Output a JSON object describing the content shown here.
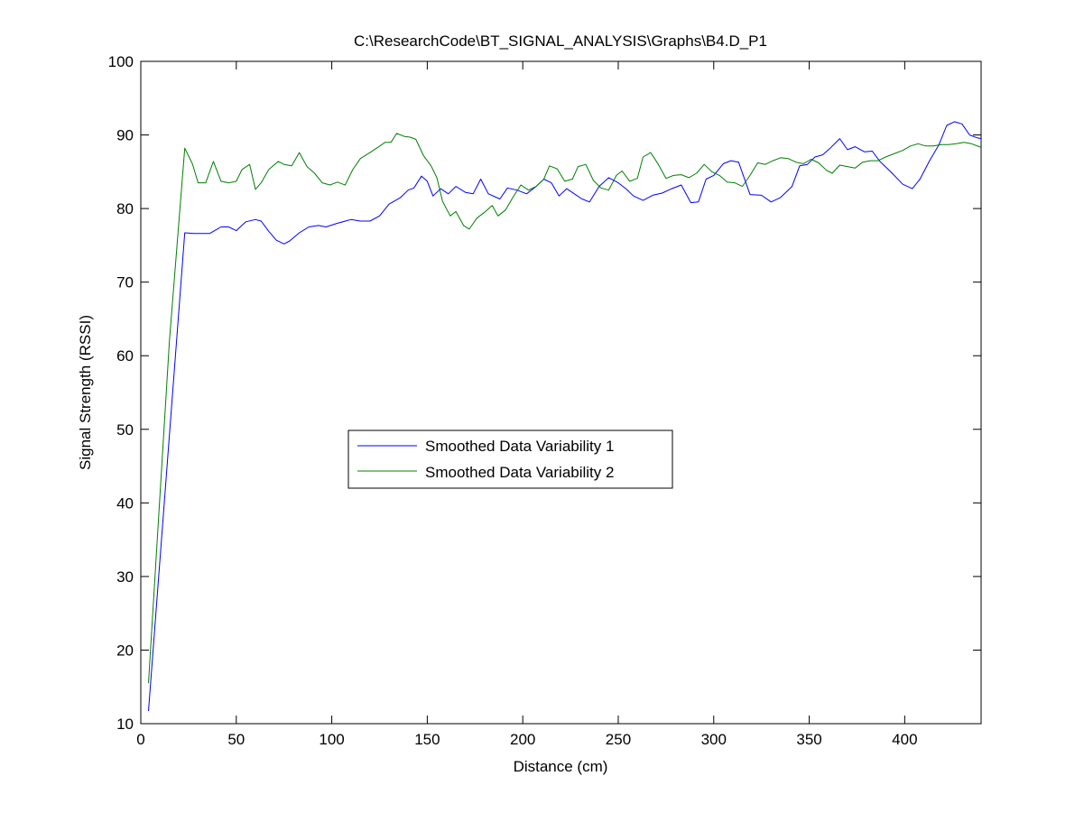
{
  "chart_data": {
    "type": "line",
    "title": "C:\\ResearchCode\\BT_SIGNAL_ANALYSIS\\Graphs\\B4.D_P1",
    "xlabel": "Distance (cm)",
    "ylabel": "Signal Strength (RSSI)",
    "xlim": [
      0,
      440
    ],
    "ylim": [
      10,
      100
    ],
    "xticks": [
      0,
      50,
      100,
      150,
      200,
      250,
      300,
      350,
      400
    ],
    "yticks": [
      10,
      20,
      30,
      40,
      50,
      60,
      70,
      80,
      90,
      100
    ],
    "xtick_labels": [
      "0",
      "50",
      "100",
      "150",
      "200",
      "250",
      "300",
      "350",
      "400"
    ],
    "ytick_labels": [
      "10",
      "20",
      "30",
      "40",
      "50",
      "60",
      "70",
      "80",
      "90",
      "100"
    ],
    "grid": false,
    "legend_position": "center",
    "series": [
      {
        "name": "Smoothed Data Variability 1",
        "color": "#0000ff",
        "points": [
          [
            4,
            11.7
          ],
          [
            23,
            76.7
          ],
          [
            28,
            76.6
          ],
          [
            36,
            76.6
          ],
          [
            42,
            77.5
          ],
          [
            46,
            77.5
          ],
          [
            50,
            77.0
          ],
          [
            55,
            78.2
          ],
          [
            60,
            78.5
          ],
          [
            63,
            78.3
          ],
          [
            67,
            76.9
          ],
          [
            71,
            75.7
          ],
          [
            75,
            75.2
          ],
          [
            78,
            75.6
          ],
          [
            83,
            76.7
          ],
          [
            88,
            77.5
          ],
          [
            93,
            77.7
          ],
          [
            97,
            77.5
          ],
          [
            103,
            78.0
          ],
          [
            110,
            78.5
          ],
          [
            115,
            78.3
          ],
          [
            120,
            78.3
          ],
          [
            125,
            79.0
          ],
          [
            130,
            80.6
          ],
          [
            136,
            81.5
          ],
          [
            140,
            82.5
          ],
          [
            143,
            82.8
          ],
          [
            147,
            84.4
          ],
          [
            150,
            83.7
          ],
          [
            153,
            81.7
          ],
          [
            157,
            82.7
          ],
          [
            161,
            82.0
          ],
          [
            165,
            83.0
          ],
          [
            170,
            82.2
          ],
          [
            174,
            82.0
          ],
          [
            178,
            84.0
          ],
          [
            182,
            82.0
          ],
          [
            188,
            81.3
          ],
          [
            192,
            82.8
          ],
          [
            197,
            82.5
          ],
          [
            202,
            82.0
          ],
          [
            207,
            83.0
          ],
          [
            211,
            84.0
          ],
          [
            215,
            83.5
          ],
          [
            219,
            81.7
          ],
          [
            223,
            82.7
          ],
          [
            227,
            82.0
          ],
          [
            231,
            81.3
          ],
          [
            235,
            80.9
          ],
          [
            240,
            83.0
          ],
          [
            245,
            84.2
          ],
          [
            250,
            83.5
          ],
          [
            254,
            82.7
          ],
          [
            258,
            81.7
          ],
          [
            263,
            81.1
          ],
          [
            268,
            81.8
          ],
          [
            273,
            82.1
          ],
          [
            278,
            82.7
          ],
          [
            283,
            83.2
          ],
          [
            288,
            80.8
          ],
          [
            292,
            80.9
          ],
          [
            296,
            84.0
          ],
          [
            300,
            84.5
          ],
          [
            305,
            86.1
          ],
          [
            309,
            86.5
          ],
          [
            313,
            86.3
          ],
          [
            319,
            81.9
          ],
          [
            325,
            81.8
          ],
          [
            330,
            80.9
          ],
          [
            335,
            81.5
          ],
          [
            341,
            83.0
          ],
          [
            345,
            85.8
          ],
          [
            349,
            86.0
          ],
          [
            353,
            87.0
          ],
          [
            357,
            87.3
          ],
          [
            361,
            88.2
          ],
          [
            366,
            89.5
          ],
          [
            370,
            88.0
          ],
          [
            374,
            88.4
          ],
          [
            379,
            87.7
          ],
          [
            383,
            87.8
          ],
          [
            387,
            86.4
          ],
          [
            393,
            84.9
          ],
          [
            399,
            83.3
          ],
          [
            404,
            82.7
          ],
          [
            408,
            84.0
          ],
          [
            413,
            86.5
          ],
          [
            418,
            88.7
          ],
          [
            422,
            91.3
          ],
          [
            426,
            91.8
          ],
          [
            430,
            91.5
          ],
          [
            434,
            90.0
          ],
          [
            438,
            89.6
          ],
          [
            440,
            89.5
          ]
        ]
      },
      {
        "name": "Smoothed Data Variability 2",
        "color": "#007f00",
        "points": [
          [
            4,
            15.5
          ],
          [
            15,
            62.0
          ],
          [
            23,
            88.2
          ],
          [
            27,
            86.1
          ],
          [
            30,
            83.5
          ],
          [
            34,
            83.5
          ],
          [
            38,
            86.4
          ],
          [
            42,
            83.7
          ],
          [
            46,
            83.5
          ],
          [
            50,
            83.7
          ],
          [
            53,
            85.3
          ],
          [
            57,
            86.0
          ],
          [
            60,
            82.6
          ],
          [
            63,
            83.5
          ],
          [
            67,
            85.3
          ],
          [
            72,
            86.4
          ],
          [
            75,
            86.0
          ],
          [
            79,
            85.8
          ],
          [
            83,
            87.6
          ],
          [
            87,
            85.7
          ],
          [
            91,
            84.8
          ],
          [
            95,
            83.5
          ],
          [
            99,
            83.2
          ],
          [
            103,
            83.6
          ],
          [
            107,
            83.2
          ],
          [
            111,
            85.3
          ],
          [
            115,
            86.8
          ],
          [
            120,
            87.6
          ],
          [
            124,
            88.3
          ],
          [
            128,
            89.0
          ],
          [
            131,
            89.0
          ],
          [
            134,
            90.2
          ],
          [
            138,
            89.8
          ],
          [
            141,
            89.7
          ],
          [
            144,
            89.4
          ],
          [
            148,
            87.2
          ],
          [
            152,
            85.8
          ],
          [
            155,
            84.2
          ],
          [
            158,
            81.0
          ],
          [
            162,
            79.0
          ],
          [
            165,
            79.6
          ],
          [
            169,
            77.7
          ],
          [
            172,
            77.2
          ],
          [
            176,
            78.7
          ],
          [
            180,
            79.5
          ],
          [
            184,
            80.4
          ],
          [
            187,
            79.0
          ],
          [
            191,
            79.8
          ],
          [
            195,
            81.6
          ],
          [
            199,
            83.2
          ],
          [
            203,
            82.5
          ],
          [
            207,
            83.0
          ],
          [
            211,
            84.0
          ],
          [
            214,
            85.8
          ],
          [
            218,
            85.4
          ],
          [
            222,
            83.7
          ],
          [
            226,
            84.0
          ],
          [
            229,
            85.7
          ],
          [
            233,
            86.0
          ],
          [
            237,
            83.8
          ],
          [
            241,
            82.8
          ],
          [
            245,
            82.5
          ],
          [
            249,
            84.5
          ],
          [
            252,
            85.1
          ],
          [
            256,
            83.7
          ],
          [
            260,
            84.1
          ],
          [
            263,
            87.0
          ],
          [
            267,
            87.6
          ],
          [
            271,
            86.0
          ],
          [
            275,
            84.1
          ],
          [
            279,
            84.5
          ],
          [
            283,
            84.6
          ],
          [
            287,
            84.2
          ],
          [
            291,
            84.8
          ],
          [
            295,
            86.0
          ],
          [
            299,
            85.0
          ],
          [
            303,
            84.5
          ],
          [
            307,
            83.6
          ],
          [
            311,
            83.5
          ],
          [
            315,
            83.0
          ],
          [
            319,
            84.5
          ],
          [
            323,
            86.2
          ],
          [
            327,
            86.0
          ],
          [
            331,
            86.5
          ],
          [
            335,
            86.9
          ],
          [
            339,
            86.8
          ],
          [
            343,
            86.3
          ],
          [
            347,
            86.1
          ],
          [
            351,
            86.7
          ],
          [
            355,
            86.2
          ],
          [
            359,
            85.2
          ],
          [
            362,
            84.8
          ],
          [
            366,
            85.9
          ],
          [
            370,
            85.7
          ],
          [
            374,
            85.5
          ],
          [
            378,
            86.3
          ],
          [
            382,
            86.5
          ],
          [
            386,
            86.5
          ],
          [
            390,
            87.0
          ],
          [
            395,
            87.5
          ],
          [
            399,
            87.9
          ],
          [
            403,
            88.5
          ],
          [
            407,
            88.8
          ],
          [
            411,
            88.5
          ],
          [
            415,
            88.5
          ],
          [
            419,
            88.7
          ],
          [
            423,
            88.7
          ],
          [
            427,
            88.8
          ],
          [
            431,
            89.0
          ],
          [
            435,
            88.8
          ],
          [
            440,
            88.3
          ]
        ]
      }
    ]
  }
}
